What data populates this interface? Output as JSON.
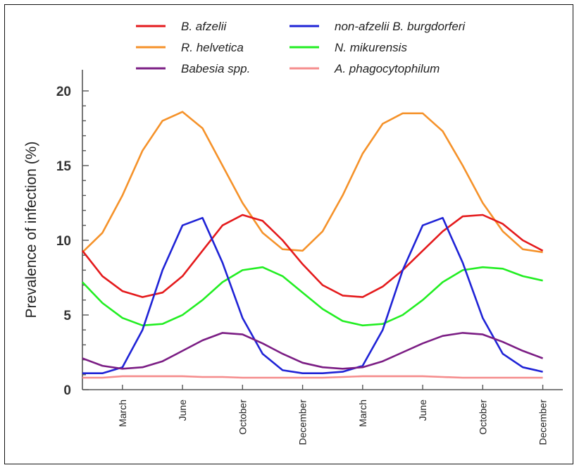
{
  "chart_data": {
    "type": "line",
    "title": "",
    "xlabel": "",
    "ylabel": "Prevalence of infection (%)",
    "ylim": [
      0,
      20
    ],
    "yticks": [
      0,
      5,
      10,
      15,
      20
    ],
    "xlim": [
      0,
      24
    ],
    "xticks": [
      {
        "x": 2,
        "label": "March"
      },
      {
        "x": 5,
        "label": "June"
      },
      {
        "x": 8,
        "label": "October"
      },
      {
        "x": 11,
        "label": "December"
      },
      {
        "x": 14,
        "label": "March"
      },
      {
        "x": 17,
        "label": "June"
      },
      {
        "x": 20,
        "label": "October"
      },
      {
        "x": 23,
        "label": "December"
      }
    ],
    "grid": false,
    "legend": "top",
    "series": [
      {
        "name": "B. afzelii",
        "color": "#e41a1c",
        "points": [
          [
            0,
            9.3
          ],
          [
            1,
            7.6
          ],
          [
            2,
            6.6
          ],
          [
            3,
            6.2
          ],
          [
            4,
            6.5
          ],
          [
            5,
            7.6
          ],
          [
            6,
            9.3
          ],
          [
            7,
            11.0
          ],
          [
            8,
            11.7
          ],
          [
            9,
            11.3
          ],
          [
            10,
            10.0
          ],
          [
            11,
            8.4
          ],
          [
            12,
            7.0
          ],
          [
            13,
            6.3
          ],
          [
            14,
            6.2
          ],
          [
            15,
            6.9
          ],
          [
            16,
            8.0
          ],
          [
            17,
            9.3
          ],
          [
            18,
            10.6
          ],
          [
            19,
            11.6
          ],
          [
            20,
            11.7
          ],
          [
            21,
            11.1
          ],
          [
            22,
            10.0
          ],
          [
            23,
            9.3
          ]
        ]
      },
      {
        "name": "non-afzelii B. burgdorferi",
        "color": "#1f23d6",
        "points": [
          [
            0,
            1.1
          ],
          [
            1,
            1.1
          ],
          [
            2,
            1.5
          ],
          [
            3,
            4.0
          ],
          [
            4,
            8.0
          ],
          [
            5,
            11.0
          ],
          [
            6,
            11.5
          ],
          [
            7,
            8.5
          ],
          [
            8,
            4.8
          ],
          [
            9,
            2.4
          ],
          [
            10,
            1.3
          ],
          [
            11,
            1.1
          ],
          [
            12,
            1.1
          ],
          [
            13,
            1.2
          ],
          [
            14,
            1.6
          ],
          [
            15,
            4.0
          ],
          [
            16,
            8.0
          ],
          [
            17,
            11.0
          ],
          [
            18,
            11.5
          ],
          [
            19,
            8.5
          ],
          [
            20,
            4.8
          ],
          [
            21,
            2.4
          ],
          [
            22,
            1.5
          ],
          [
            23,
            1.2
          ]
        ]
      },
      {
        "name": "R. helvetica",
        "color": "#f5922a",
        "points": [
          [
            0,
            9.2
          ],
          [
            1,
            10.5
          ],
          [
            2,
            13.0
          ],
          [
            3,
            16.0
          ],
          [
            4,
            18.0
          ],
          [
            5,
            18.6
          ],
          [
            6,
            17.5
          ],
          [
            7,
            15.0
          ],
          [
            8,
            12.5
          ],
          [
            9,
            10.5
          ],
          [
            10,
            9.4
          ],
          [
            11,
            9.3
          ],
          [
            12,
            10.6
          ],
          [
            13,
            13.0
          ],
          [
            14,
            15.8
          ],
          [
            15,
            17.8
          ],
          [
            16,
            18.5
          ],
          [
            17,
            18.5
          ],
          [
            18,
            17.3
          ],
          [
            19,
            15.0
          ],
          [
            20,
            12.5
          ],
          [
            21,
            10.6
          ],
          [
            22,
            9.4
          ],
          [
            23,
            9.2
          ]
        ]
      },
      {
        "name": "N. mikurensis",
        "color": "#22ee22",
        "points": [
          [
            0,
            7.2
          ],
          [
            1,
            5.8
          ],
          [
            2,
            4.8
          ],
          [
            3,
            4.3
          ],
          [
            4,
            4.4
          ],
          [
            5,
            5.0
          ],
          [
            6,
            6.0
          ],
          [
            7,
            7.2
          ],
          [
            8,
            8.0
          ],
          [
            9,
            8.2
          ],
          [
            10,
            7.6
          ],
          [
            11,
            6.5
          ],
          [
            12,
            5.4
          ],
          [
            13,
            4.6
          ],
          [
            14,
            4.3
          ],
          [
            15,
            4.4
          ],
          [
            16,
            5.0
          ],
          [
            17,
            6.0
          ],
          [
            18,
            7.2
          ],
          [
            19,
            8.0
          ],
          [
            20,
            8.2
          ],
          [
            21,
            8.1
          ],
          [
            22,
            7.6
          ],
          [
            23,
            7.3
          ]
        ]
      },
      {
        "name": "Babesia spp.",
        "color": "#7b1d84",
        "points": [
          [
            0,
            2.1
          ],
          [
            1,
            1.6
          ],
          [
            2,
            1.4
          ],
          [
            3,
            1.5
          ],
          [
            4,
            1.9
          ],
          [
            5,
            2.6
          ],
          [
            6,
            3.3
          ],
          [
            7,
            3.8
          ],
          [
            8,
            3.7
          ],
          [
            9,
            3.1
          ],
          [
            10,
            2.4
          ],
          [
            11,
            1.8
          ],
          [
            12,
            1.5
          ],
          [
            13,
            1.4
          ],
          [
            14,
            1.5
          ],
          [
            15,
            1.9
          ],
          [
            16,
            2.5
          ],
          [
            17,
            3.1
          ],
          [
            18,
            3.6
          ],
          [
            19,
            3.8
          ],
          [
            20,
            3.7
          ],
          [
            21,
            3.2
          ],
          [
            22,
            2.6
          ],
          [
            23,
            2.1
          ]
        ]
      },
      {
        "name": "A. phagocytophilum",
        "color": "#f58c8c",
        "points": [
          [
            0,
            0.8
          ],
          [
            1,
            0.8
          ],
          [
            2,
            0.9
          ],
          [
            3,
            0.9
          ],
          [
            4,
            0.9
          ],
          [
            5,
            0.9
          ],
          [
            6,
            0.85
          ],
          [
            7,
            0.85
          ],
          [
            8,
            0.8
          ],
          [
            9,
            0.8
          ],
          [
            10,
            0.8
          ],
          [
            11,
            0.8
          ],
          [
            12,
            0.8
          ],
          [
            13,
            0.85
          ],
          [
            14,
            0.9
          ],
          [
            15,
            0.9
          ],
          [
            16,
            0.9
          ],
          [
            17,
            0.9
          ],
          [
            18,
            0.85
          ],
          [
            19,
            0.8
          ],
          [
            20,
            0.8
          ],
          [
            21,
            0.8
          ],
          [
            22,
            0.8
          ],
          [
            23,
            0.8
          ]
        ]
      }
    ]
  }
}
